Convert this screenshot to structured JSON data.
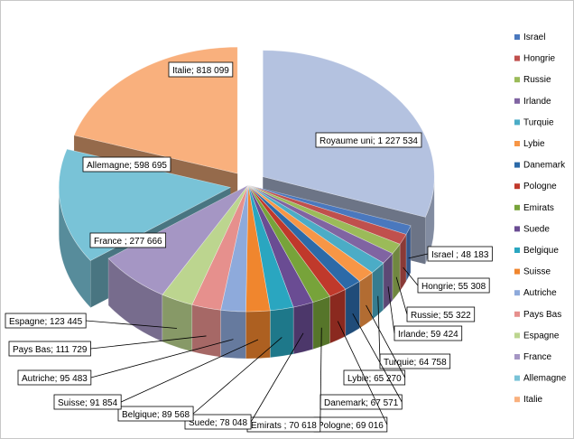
{
  "chart_data": {
    "type": "pie",
    "title": "",
    "legend_position": "right",
    "legend": [
      "Israel",
      "Hongrie",
      "Russie",
      "Irlande",
      "Turquie",
      "Lybie",
      "Danemark",
      "Pologne",
      "Emirats",
      "Suede",
      "Belgique",
      "Suisse",
      "Autriche",
      "Pays Bas",
      "Espagne",
      "France",
      "Allemagne",
      "Italie"
    ],
    "slices": [
      {
        "name": "Royaume uni",
        "value": 1227534,
        "label": "Royaume uni; 1 227 534",
        "color": "#b4c2e0"
      },
      {
        "name": "Israel",
        "value": 48183,
        "label": "Israel ; 48 183",
        "color": "#4a78be"
      },
      {
        "name": "Hongrie",
        "value": 55308,
        "label": "Hongrie; 55 308",
        "color": "#c0504d"
      },
      {
        "name": "Russie",
        "value": 55322,
        "label": "Russie; 55 322",
        "color": "#9bbb59"
      },
      {
        "name": "Irlande",
        "value": 59424,
        "label": "Irlande; 59 424",
        "color": "#8064a2"
      },
      {
        "name": "Turquie",
        "value": 64758,
        "label": "Turquie; 64 758",
        "color": "#4bacc6"
      },
      {
        "name": "Lybie",
        "value": 65270,
        "label": "Lybie; 65 270",
        "color": "#f79646"
      },
      {
        "name": "Danemark",
        "value": 67571,
        "label": "Danemark; 67 571",
        "color": "#2c6aa8"
      },
      {
        "name": "Pologne",
        "value": 69016,
        "label": "Pologne; 69 016",
        "color": "#c0392b"
      },
      {
        "name": "Emirats",
        "value": 70618,
        "label": "Emirats ; 70 618",
        "color": "#77a33a"
      },
      {
        "name": "Suede",
        "value": 78048,
        "label": "Suede; 78 048",
        "color": "#6a4c93"
      },
      {
        "name": "Belgique",
        "value": 89568,
        "label": "Belgique; 89 568",
        "color": "#2aa6c0"
      },
      {
        "name": "Suisse",
        "value": 91854,
        "label": "Suisse; 91 854",
        "color": "#f0862e"
      },
      {
        "name": "Autriche",
        "value": 95483,
        "label": "Autriche; 95 483",
        "color": "#8eaadb"
      },
      {
        "name": "Pays Bas",
        "value": 111729,
        "label": "Pays Bas; 111 729",
        "color": "#e6908d"
      },
      {
        "name": "Espagne",
        "value": 123445,
        "label": "Espagne; 123 445",
        "color": "#bcd58f"
      },
      {
        "name": "France",
        "value": 277666,
        "label": "France ; 277 666",
        "color": "#a596c4"
      },
      {
        "name": "Allemagne",
        "value": 598695,
        "label": "Allemagne; 598 695",
        "color": "#79c3d7"
      },
      {
        "name": "Italie",
        "value": 818099,
        "label": "Italie; 818 099",
        "color": "#f9b07d"
      }
    ]
  }
}
